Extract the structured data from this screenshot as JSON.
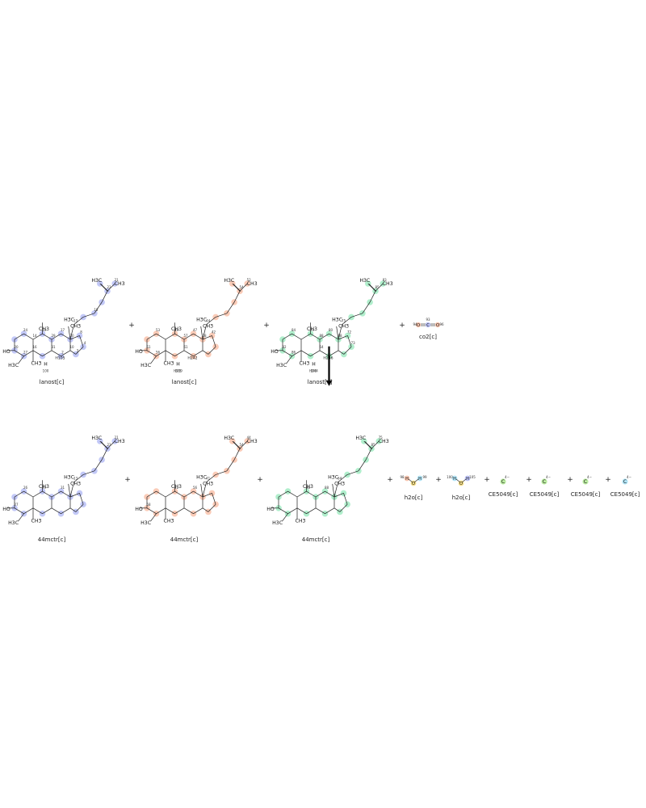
{
  "diagram": {
    "colors": {
      "blue": "#8f9af0",
      "orange": "#f5a07c",
      "green": "#6fe0a2",
      "cyan": "#7fd3f2",
      "yellow": "#f1cc3c",
      "lime": "#8ee062",
      "bond": "#1f1f1f"
    },
    "reactants": [
      {
        "label": "lanost[c]",
        "color": "blue",
        "atoms": [
          "H3C",
          "CH3",
          "H3C",
          "CH3",
          "CH3",
          "HO",
          "H3C",
          "CH3",
          "H",
          "H105",
          "100"
        ],
        "nums": [
          "23",
          "21",
          "13",
          "19",
          "17",
          "20",
          "24",
          "27",
          "29",
          "31",
          "30",
          "8",
          "4",
          "3",
          "2",
          "10",
          "14",
          "16",
          "18"
        ]
      },
      {
        "label": "lanost[c]",
        "color": "orange",
        "atoms": [
          "H3C",
          "CH3",
          "H3C",
          "CH3",
          "CH3",
          "HO",
          "H3C",
          "CH3",
          "H",
          "H242",
          "H239",
          "241"
        ],
        "nums": [
          "54",
          "52",
          "44",
          "49",
          "47",
          "51",
          "53",
          "56",
          "57",
          "61",
          "38",
          "42"
        ]
      },
      {
        "label": "lanost[c]",
        "color": "green",
        "atoms": [
          "H3C",
          "CH3",
          "H3C",
          "CH3",
          "CH3",
          "HO",
          "H3C",
          "CH3",
          "H",
          "H246",
          "H244",
          "245"
        ],
        "nums": [
          "85",
          "83",
          "75",
          "79",
          "80",
          "82",
          "84",
          "86",
          "88",
          "64",
          "68",
          "72",
          "73"
        ]
      },
      {
        "label": "co2[c]",
        "color": "orange",
        "atoms": [
          "O",
          "C",
          "O"
        ],
        "nums": [
          "94",
          "93",
          "96"
        ]
      }
    ],
    "products": [
      {
        "label": "44mctr[c]",
        "color": "blue",
        "atoms": [
          "H3C",
          "CH3",
          "H3C",
          "CH3",
          "CH3",
          "HO",
          "H3C",
          "CH3"
        ],
        "nums": [
          "23",
          "21",
          "13",
          "29",
          "31",
          "27",
          "26"
        ]
      },
      {
        "label": "44mctr[c]",
        "color": "orange",
        "atoms": [
          "H3C",
          "CH3",
          "H3C",
          "CH3",
          "CH3",
          "HO",
          "H3C",
          "CH3"
        ],
        "nums": [
          "54",
          "44",
          "41",
          "51",
          "56",
          "58"
        ]
      },
      {
        "label": "44mctr[c]",
        "color": "green",
        "atoms": [
          "H3C",
          "CH3",
          "H3C",
          "CH3",
          "CH3",
          "HO",
          "H3C",
          "CH3"
        ],
        "nums": [
          "85",
          "75",
          "64",
          "86",
          "88"
        ]
      },
      {
        "label": "h2o[c]",
        "color": "orange",
        "atoms": [
          "H",
          "O",
          "H"
        ],
        "nums": [
          "98",
          "99"
        ]
      },
      {
        "label": "h2o[c]",
        "color": "blue",
        "atoms": [
          "H",
          "O",
          "H"
        ],
        "nums": [
          "100",
          "105"
        ]
      },
      {
        "label": "CE5049[c]",
        "color": "lime",
        "atoms": [
          "C",
          "4−"
        ]
      },
      {
        "label": "CE5049[c]",
        "color": "lime",
        "atoms": [
          "C",
          "4−"
        ]
      },
      {
        "label": "CE5049[c]",
        "color": "lime",
        "atoms": [
          "C",
          "4−"
        ]
      },
      {
        "label": "CE5049[c]",
        "color": "cyan",
        "atoms": [
          "C",
          "4−"
        ]
      }
    ],
    "plus_sign": "+"
  }
}
